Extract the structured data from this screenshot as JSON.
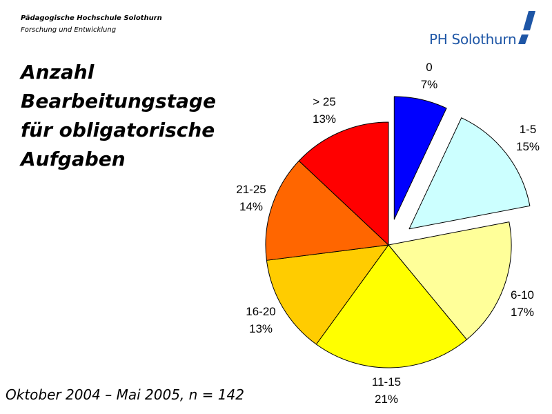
{
  "header": {
    "institution": "Pädagogische Hochschule Solothurn",
    "department": "Forschung und Entwicklung"
  },
  "logo": {
    "text": "PH Solothurn",
    "color": "#1e56a6"
  },
  "title_lines": [
    "Anzahl",
    "Bearbeitungstage",
    "für obligatorische",
    "Aufgaben"
  ],
  "footnote": "Oktober 2004 – Mai 2005, n = 142",
  "chart_data": {
    "type": "pie",
    "title": "Anzahl Bearbeitungstage für obligatorische Aufgaben",
    "categories": [
      "0",
      "1-5",
      "6-10",
      "11-15",
      "16-20",
      "21-25",
      "> 25"
    ],
    "values": [
      7,
      15,
      17,
      21,
      13,
      14,
      13
    ],
    "percent_labels": [
      "7%",
      "15%",
      "17%",
      "21%",
      "13%",
      "14%",
      "13%"
    ],
    "colors": [
      "#0000ff",
      "#ccffff",
      "#ffff99",
      "#ffff00",
      "#ffcc00",
      "#ff6600",
      "#ff0000"
    ],
    "exploded": [
      "0",
      "1-5"
    ],
    "start": "12 o'clock, clockwise",
    "legend": "none (labels beside slices)"
  }
}
